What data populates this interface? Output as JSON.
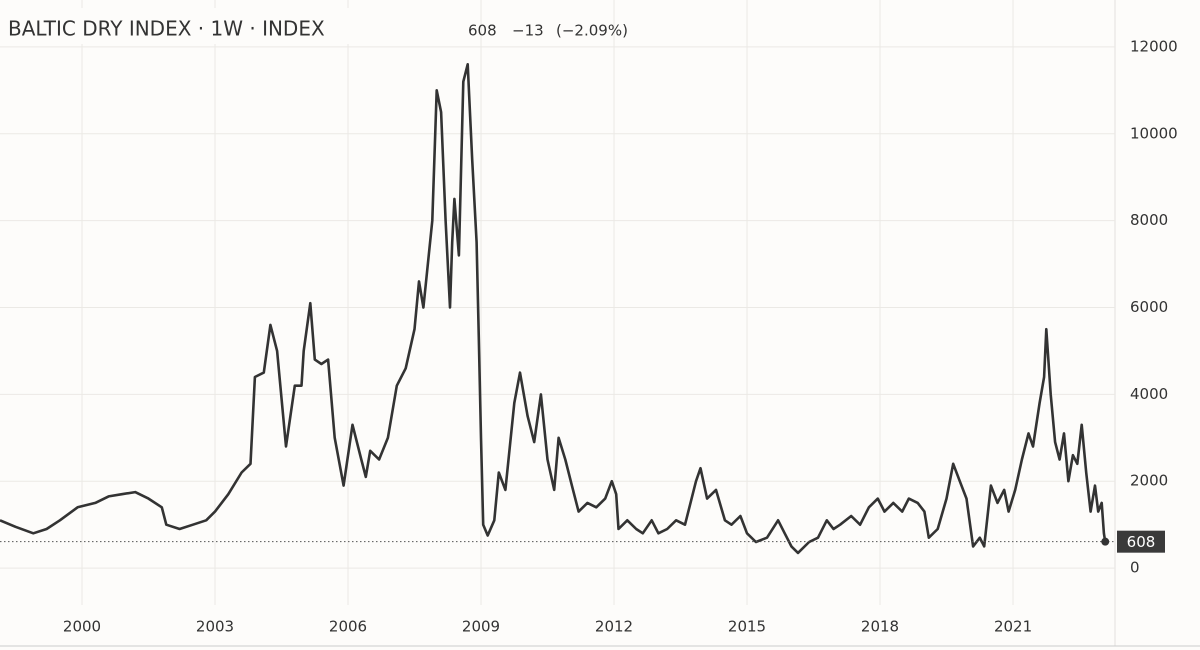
{
  "chart_data": {
    "type": "line",
    "title": "BALTIC DRY INDEX · 1W · INDEX",
    "change": "−13",
    "change_pct": "(−2.09%)",
    "x": [
      1998.15,
      1998.5,
      1998.9,
      1999.2,
      1999.5,
      1999.9,
      2000.3,
      2000.6,
      2000.9,
      2001.2,
      2001.5,
      2001.8,
      2001.9,
      2002.2,
      2002.5,
      2002.8,
      2003.0,
      2003.3,
      2003.6,
      2003.8,
      2003.9,
      2004.1,
      2004.25,
      2004.4,
      2004.6,
      2004.8,
      2004.95,
      2005.0,
      2005.15,
      2005.25,
      2005.4,
      2005.55,
      2005.7,
      2005.9,
      2006.1,
      2006.3,
      2006.4,
      2006.5,
      2006.7,
      2006.9,
      2007.1,
      2007.3,
      2007.5,
      2007.6,
      2007.7,
      2007.9,
      2008.0,
      2008.1,
      2008.2,
      2008.3,
      2008.35,
      2008.4,
      2008.5,
      2008.6,
      2008.7,
      2008.8,
      2008.9,
      2008.95,
      2009.0,
      2009.05,
      2009.15,
      2009.3,
      2009.4,
      2009.55,
      2009.75,
      2009.88,
      2010.05,
      2010.2,
      2010.35,
      2010.5,
      2010.65,
      2010.75,
      2010.9,
      2011.05,
      2011.2,
      2011.4,
      2011.6,
      2011.8,
      2011.95,
      2012.05,
      2012.1,
      2012.3,
      2012.5,
      2012.65,
      2012.85,
      2013.0,
      2013.2,
      2013.4,
      2013.6,
      2013.85,
      2013.95,
      2014.1,
      2014.3,
      2014.5,
      2014.65,
      2014.85,
      2015.0,
      2015.2,
      2015.45,
      2015.7,
      2015.85,
      2016.0,
      2016.15,
      2016.4,
      2016.6,
      2016.8,
      2016.95,
      2017.1,
      2017.35,
      2017.55,
      2017.75,
      2017.95,
      2018.1,
      2018.3,
      2018.5,
      2018.65,
      2018.85,
      2019.0,
      2019.1,
      2019.3,
      2019.5,
      2019.65,
      2019.8,
      2019.95,
      2020.1,
      2020.25,
      2020.35,
      2020.5,
      2020.65,
      2020.8,
      2020.9,
      2021.05,
      2021.2,
      2021.35,
      2021.45,
      2021.6,
      2021.7,
      2021.75,
      2021.85,
      2021.95,
      2022.05,
      2022.15,
      2022.25,
      2022.35,
      2022.45,
      2022.55,
      2022.65,
      2022.75,
      2022.85,
      2022.92,
      2023.0,
      2023.05,
      2023.08
    ],
    "series": [
      {
        "name": "BALTIC DRY INDEX",
        "color": "#333333",
        "values": [
          1100,
          950,
          800,
          900,
          1100,
          1400,
          1500,
          1650,
          1700,
          1750,
          1600,
          1400,
          1000,
          900,
          1000,
          1100,
          1300,
          1700,
          2200,
          2400,
          4400,
          4500,
          5600,
          5000,
          2800,
          4200,
          4200,
          5000,
          6100,
          4800,
          4700,
          4800,
          3000,
          1900,
          3300,
          2500,
          2100,
          2700,
          2500,
          3000,
          4200,
          4600,
          5500,
          6600,
          6000,
          8000,
          11000,
          10500,
          8000,
          6000,
          7500,
          8500,
          7200,
          11200,
          11600,
          9400,
          7500,
          5300,
          3000,
          1000,
          750,
          1100,
          2200,
          1800,
          3800,
          4500,
          3500,
          2900,
          4000,
          2500,
          1800,
          3000,
          2500,
          1900,
          1300,
          1500,
          1400,
          1600,
          2000,
          1700,
          900,
          1100,
          900,
          800,
          1100,
          800,
          900,
          1100,
          1000,
          2000,
          2300,
          1600,
          1800,
          1100,
          1000,
          1200,
          800,
          600,
          700,
          1100,
          800,
          500,
          350,
          600,
          700,
          1100,
          900,
          1000,
          1200,
          1000,
          1400,
          1600,
          1300,
          1500,
          1300,
          1600,
          1500,
          1300,
          700,
          900,
          1600,
          2400,
          2000,
          1600,
          500,
          700,
          500,
          1900,
          1500,
          1800,
          1300,
          1800,
          2500,
          3100,
          2800,
          3800,
          4400,
          5500,
          4000,
          2900,
          2500,
          3100,
          2000,
          2600,
          2400,
          3300,
          2200,
          1300,
          1900,
          1300,
          1500,
          800,
          608
        ]
      }
    ],
    "xlim": [
      1998.15,
      2023.3
    ],
    "xticks": [
      2000,
      2003,
      2006,
      2009,
      2012,
      2015,
      2018,
      2021
    ],
    "ylim": [
      -850,
      13080
    ],
    "yticks": [
      0,
      2000,
      4000,
      6000,
      8000,
      10000,
      12000
    ],
    "grid": true
  }
}
